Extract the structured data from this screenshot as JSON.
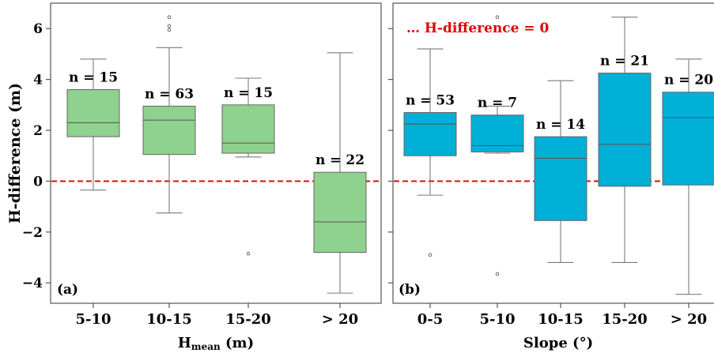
{
  "colors": {
    "panel_a_box": "#8fd18f",
    "panel_b_box": "#00b0d6",
    "zero_line": "#e00000",
    "whisker": "#7a7a7a",
    "frame": "#555555",
    "text": "#000000"
  },
  "chart_data": [
    {
      "type": "box",
      "panel_label": "(a)",
      "ylabel": "H-difference (m)",
      "xlabel_main": "H",
      "xlabel_sub": "mean",
      "xlabel_unit": " (m)",
      "ylim": [
        -4.8,
        7.0
      ],
      "yticks": [
        -4,
        -2,
        0,
        2,
        4,
        6
      ],
      "reference_line": 0,
      "categories": [
        "5-10",
        "10-15",
        "15-20",
        "> 20"
      ],
      "n_labels": [
        "n = 15",
        "n = 63",
        "n = 15",
        "n = 22"
      ],
      "boxes": [
        {
          "whislo": -0.35,
          "q1": 1.75,
          "med": 2.3,
          "q3": 3.6,
          "whishi": 4.8,
          "fliers": []
        },
        {
          "whislo": -1.25,
          "q1": 1.05,
          "med": 2.4,
          "q3": 2.95,
          "whishi": 5.25,
          "fliers": [
            5.95,
            6.1,
            6.45
          ]
        },
        {
          "whislo": 0.95,
          "q1": 1.1,
          "med": 1.5,
          "q3": 3.0,
          "whishi": 4.05,
          "fliers": [
            -2.85
          ]
        },
        {
          "whislo": -4.4,
          "q1": -2.8,
          "med": -1.6,
          "q3": 0.35,
          "whishi": 5.05,
          "fliers": []
        }
      ]
    },
    {
      "type": "box",
      "panel_label": "(b)",
      "ylabel": "",
      "xlabel": "Slope (°)",
      "legend": "… H-difference = 0",
      "legend_position": "top-left",
      "ylim": [
        -4.8,
        7.0
      ],
      "reference_line": 0,
      "categories": [
        "0-5",
        "5-10",
        "10-15",
        "15-20",
        "> 20"
      ],
      "n_labels": [
        "n = 53",
        "n = 7",
        "n = 14",
        "n = 21",
        "n = 20"
      ],
      "boxes": [
        {
          "whislo": -0.55,
          "q1": 1.0,
          "med": 2.25,
          "q3": 2.7,
          "whishi": 5.2,
          "fliers": [
            -2.9
          ]
        },
        {
          "whislo": 1.1,
          "q1": 1.15,
          "med": 1.4,
          "q3": 2.6,
          "whishi": 2.95,
          "fliers": [
            6.45,
            -3.65
          ]
        },
        {
          "whislo": -3.2,
          "q1": -1.55,
          "med": 0.9,
          "q3": 1.75,
          "whishi": 3.95,
          "fliers": []
        },
        {
          "whislo": -3.2,
          "q1": -0.2,
          "med": 1.45,
          "q3": 4.25,
          "whishi": 6.45,
          "fliers": []
        },
        {
          "whislo": -4.45,
          "q1": -0.15,
          "med": 2.5,
          "q3": 3.5,
          "whishi": 4.8,
          "fliers": []
        }
      ]
    }
  ]
}
